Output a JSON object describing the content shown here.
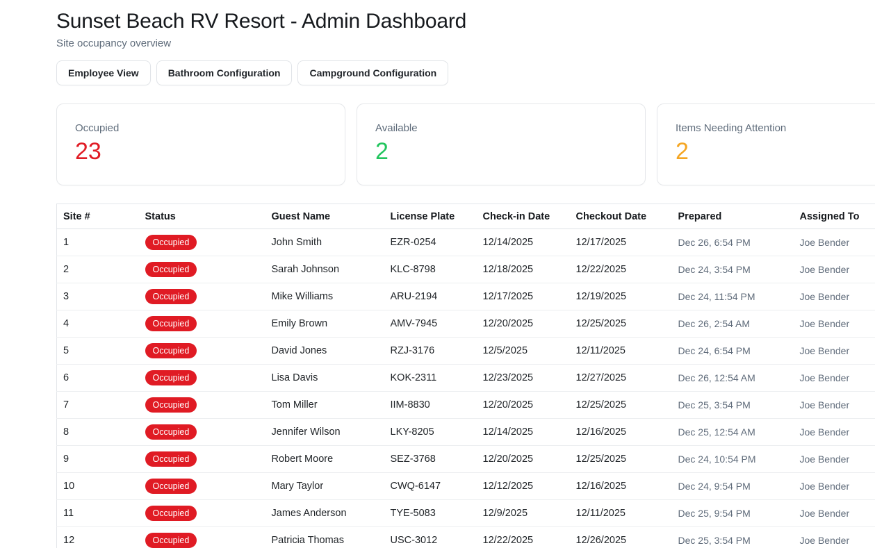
{
  "header": {
    "title": "Sunset Beach RV Resort - Admin Dashboard",
    "subtitle": "Site occupancy overview"
  },
  "toolbar": {
    "buttons": [
      {
        "label": "Employee View"
      },
      {
        "label": "Bathroom Configuration"
      },
      {
        "label": "Campground Configuration"
      }
    ]
  },
  "stats": [
    {
      "label": "Occupied",
      "value": "23",
      "color": "#e01b24"
    },
    {
      "label": "Available",
      "value": "2",
      "color": "#22c55e"
    },
    {
      "label": "Items Needing Attention",
      "value": "2",
      "color": "#f5a623"
    }
  ],
  "table": {
    "columns": [
      "Site #",
      "Status",
      "Guest Name",
      "License Plate",
      "Check-in Date",
      "Checkout Date",
      "Prepared",
      "Assigned To"
    ],
    "status_badge_color": "#e01b24",
    "rows": [
      {
        "site": "1",
        "status": "Occupied",
        "guest": "John Smith",
        "plate": "EZR-0254",
        "checkin": "12/14/2025",
        "checkout": "12/17/2025",
        "prepared": "Dec 26, 6:54 PM",
        "assigned": "Joe Bender"
      },
      {
        "site": "2",
        "status": "Occupied",
        "guest": "Sarah Johnson",
        "plate": "KLC-8798",
        "checkin": "12/18/2025",
        "checkout": "12/22/2025",
        "prepared": "Dec 24, 3:54 PM",
        "assigned": "Joe Bender"
      },
      {
        "site": "3",
        "status": "Occupied",
        "guest": "Mike Williams",
        "plate": "ARU-2194",
        "checkin": "12/17/2025",
        "checkout": "12/19/2025",
        "prepared": "Dec 24, 11:54 PM",
        "assigned": "Joe Bender"
      },
      {
        "site": "4",
        "status": "Occupied",
        "guest": "Emily Brown",
        "plate": "AMV-7945",
        "checkin": "12/20/2025",
        "checkout": "12/25/2025",
        "prepared": "Dec 26, 2:54 AM",
        "assigned": "Joe Bender"
      },
      {
        "site": "5",
        "status": "Occupied",
        "guest": "David Jones",
        "plate": "RZJ-3176",
        "checkin": "12/5/2025",
        "checkout": "12/11/2025",
        "prepared": "Dec 24, 6:54 PM",
        "assigned": "Joe Bender"
      },
      {
        "site": "6",
        "status": "Occupied",
        "guest": "Lisa Davis",
        "plate": "KOK-2311",
        "checkin": "12/23/2025",
        "checkout": "12/27/2025",
        "prepared": "Dec 26, 12:54 AM",
        "assigned": "Joe Bender"
      },
      {
        "site": "7",
        "status": "Occupied",
        "guest": "Tom Miller",
        "plate": "IIM-8830",
        "checkin": "12/20/2025",
        "checkout": "12/25/2025",
        "prepared": "Dec 25, 3:54 PM",
        "assigned": "Joe Bender"
      },
      {
        "site": "8",
        "status": "Occupied",
        "guest": "Jennifer Wilson",
        "plate": "LKY-8205",
        "checkin": "12/14/2025",
        "checkout": "12/16/2025",
        "prepared": "Dec 25, 12:54 AM",
        "assigned": "Joe Bender"
      },
      {
        "site": "9",
        "status": "Occupied",
        "guest": "Robert Moore",
        "plate": "SEZ-3768",
        "checkin": "12/20/2025",
        "checkout": "12/25/2025",
        "prepared": "Dec 24, 10:54 PM",
        "assigned": "Joe Bender"
      },
      {
        "site": "10",
        "status": "Occupied",
        "guest": "Mary Taylor",
        "plate": "CWQ-6147",
        "checkin": "12/12/2025",
        "checkout": "12/16/2025",
        "prepared": "Dec 24, 9:54 PM",
        "assigned": "Joe Bender"
      },
      {
        "site": "11",
        "status": "Occupied",
        "guest": "James Anderson",
        "plate": "TYE-5083",
        "checkin": "12/9/2025",
        "checkout": "12/11/2025",
        "prepared": "Dec 25, 9:54 PM",
        "assigned": "Joe Bender"
      },
      {
        "site": "12",
        "status": "Occupied",
        "guest": "Patricia Thomas",
        "plate": "USC-3012",
        "checkin": "12/22/2025",
        "checkout": "12/26/2025",
        "prepared": "Dec 25, 3:54 PM",
        "assigned": "Joe Bender"
      }
    ]
  }
}
